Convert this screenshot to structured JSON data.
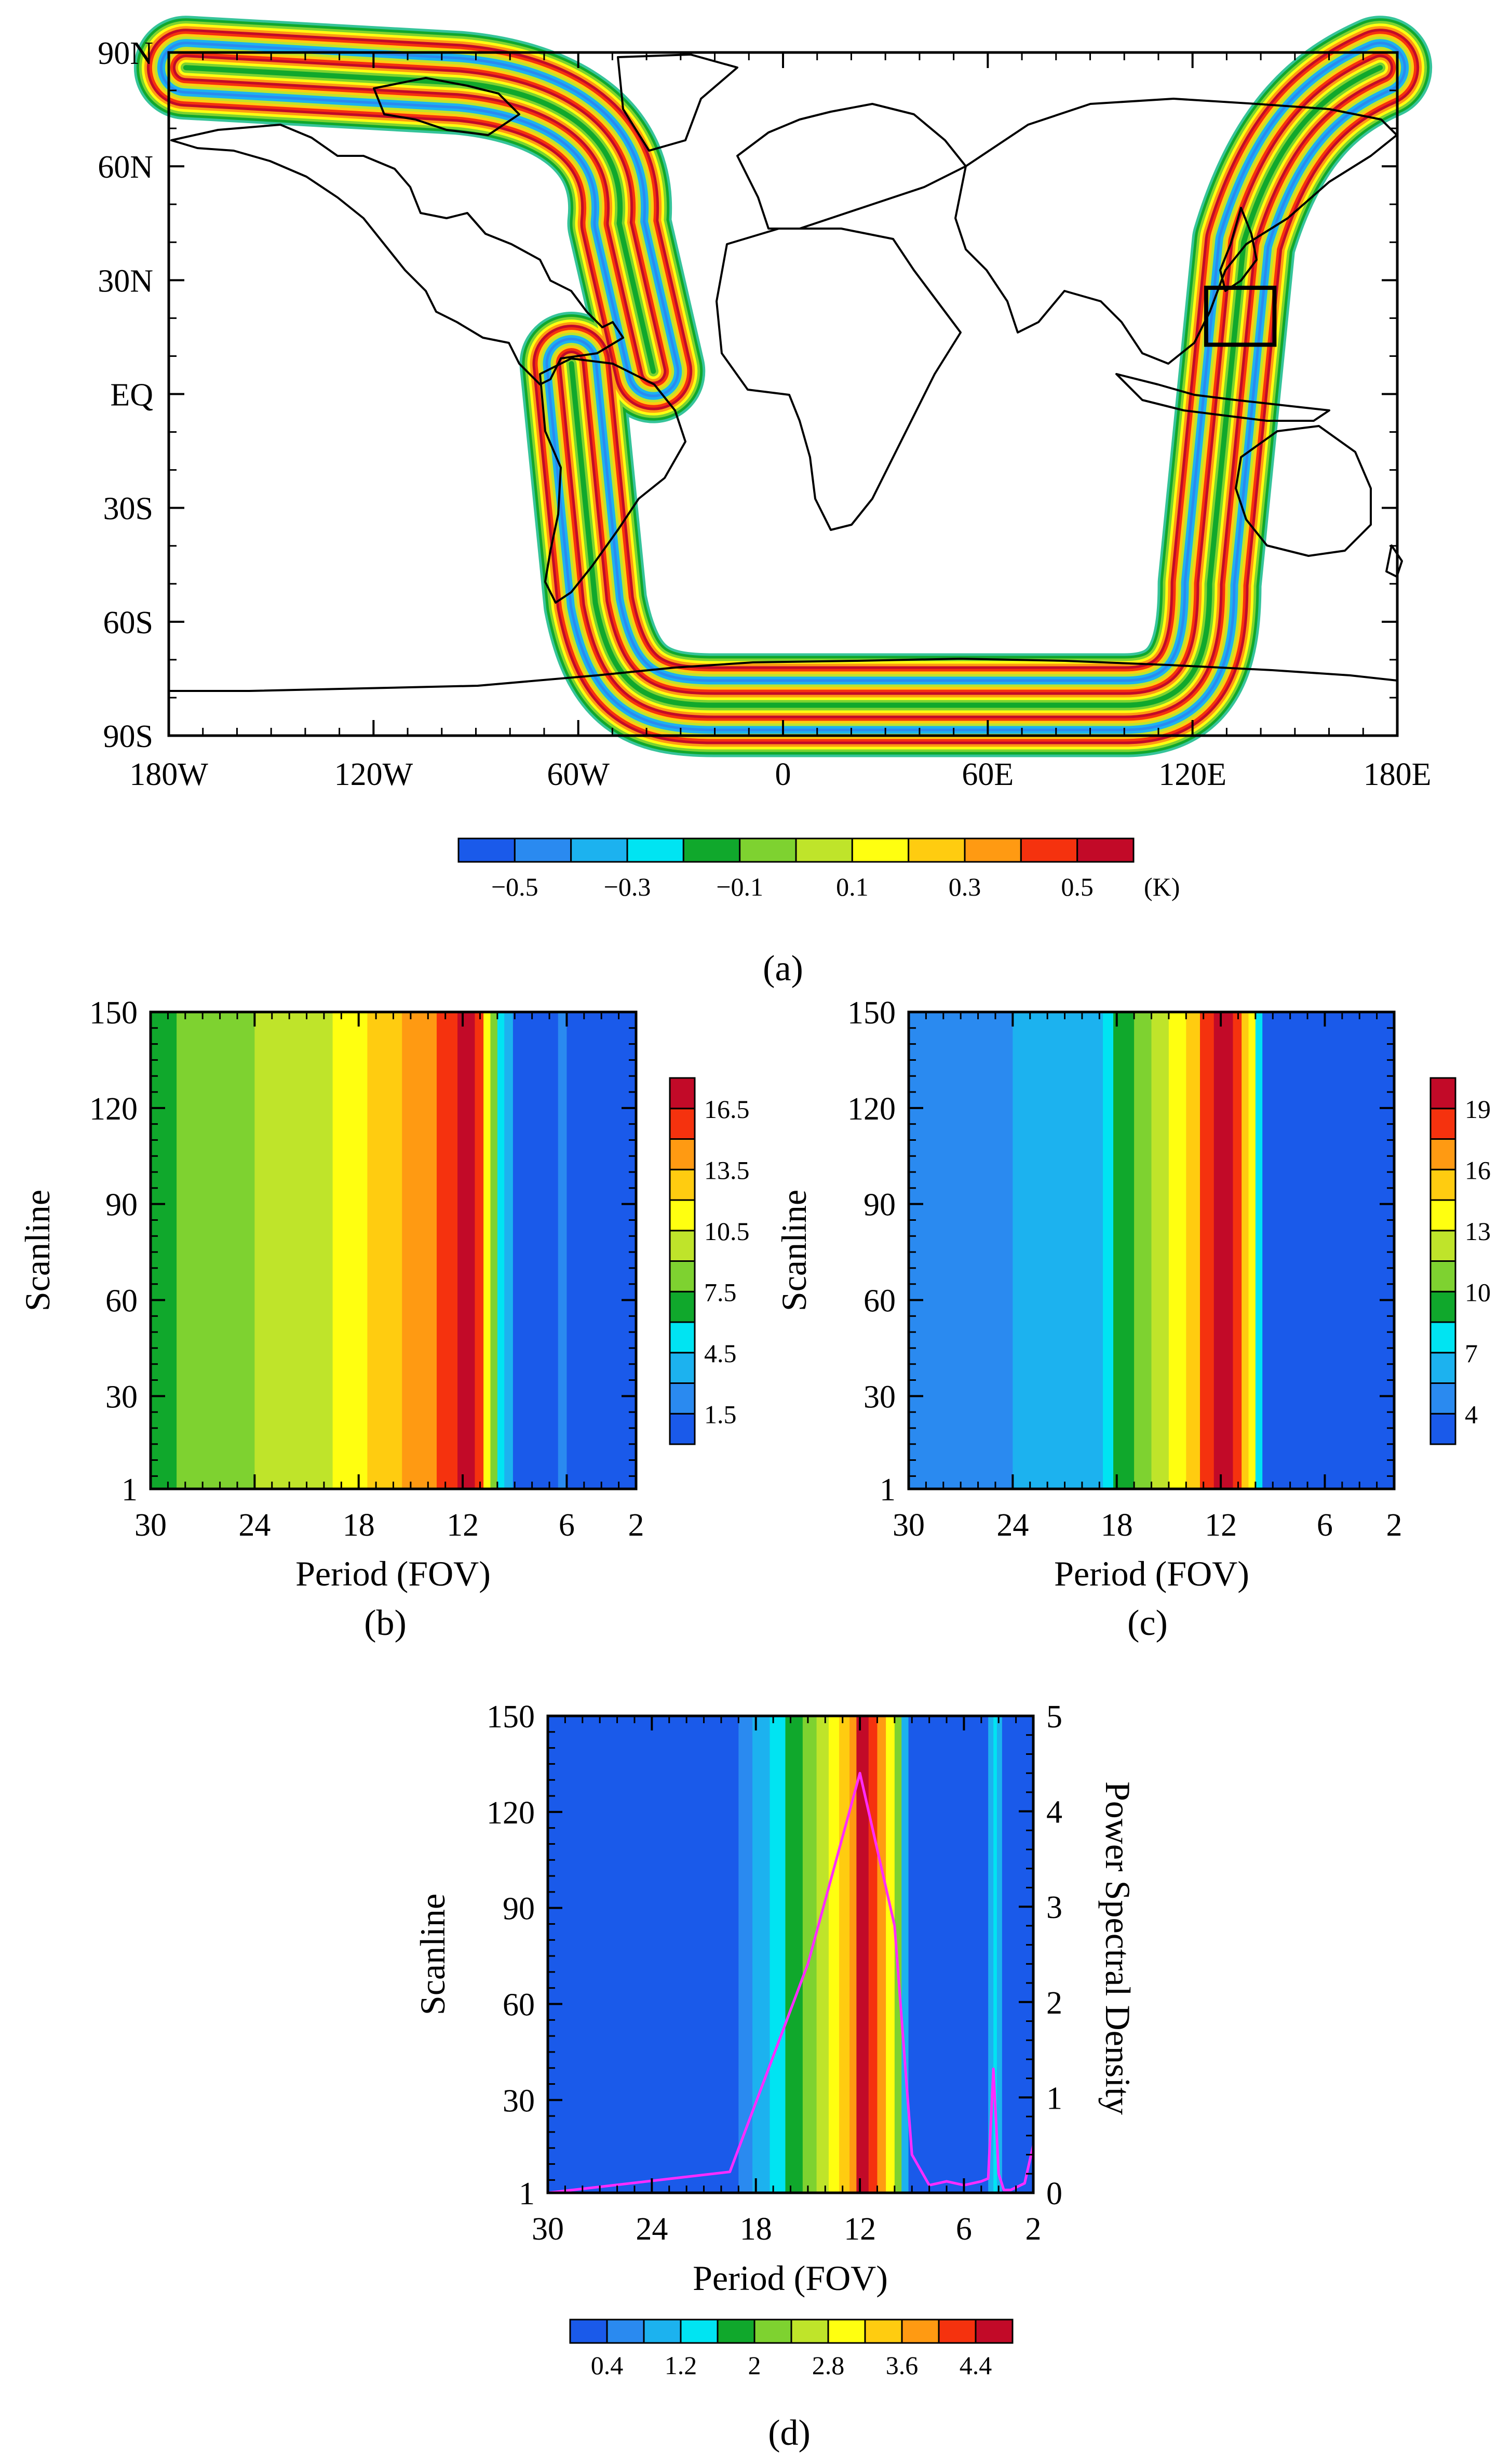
{
  "figure": {
    "colors": {
      "palette_12": [
        "#1a5aea",
        "#2a8af0",
        "#1cb2ef",
        "#00e4f2",
        "#10a82c",
        "#7ed230",
        "#bfe42a",
        "#ffff10",
        "#ffcc10",
        "#ff9a12",
        "#f5320e",
        "#c20a28"
      ],
      "continent_outline": "#000000",
      "swath_edge": "#36c49a",
      "psd_line": "#ff2cff",
      "box": "#000000"
    }
  },
  "chart_data": [
    {
      "id": "a",
      "type": "heatmap",
      "subtype": "map",
      "panel_label": "(a)",
      "title": "",
      "x_ticks": [
        "180W",
        "120W",
        "60W",
        "0",
        "60E",
        "120E",
        "180E"
      ],
      "y_ticks": [
        "90N",
        "60N",
        "30N",
        "EQ",
        "30S",
        "60S",
        "90S"
      ],
      "xlim": [
        -180,
        180
      ],
      "ylim": [
        -90,
        90
      ],
      "colorbar": {
        "orientation": "horizontal",
        "labels": [
          "−0.5",
          "−0.3",
          "−0.1",
          "0.1",
          "0.3",
          "0.5"
        ],
        "unit": "(K)",
        "levels": [
          -0.6,
          -0.5,
          -0.4,
          -0.3,
          -0.2,
          -0.1,
          0.0,
          0.1,
          0.2,
          0.3,
          0.4,
          0.5,
          0.6
        ]
      },
      "swath": {
        "description": "striping noise along orbit, values alternate between -0.6 and 0.6 K across the scan",
        "ascending_start": [
          -175,
          86
        ],
        "ascending_turn_lon": -45,
        "ascending_end": [
          -38,
          6
        ],
        "descending_start": [
          -62,
          8
        ],
        "southern_bottom_lat": -82,
        "descending_east_lon": 125,
        "eastern_top": [
          175,
          86
        ]
      },
      "box": {
        "lon_range": [
          124,
          144
        ],
        "lat_range": [
          13,
          28
        ]
      }
    },
    {
      "id": "b",
      "type": "heatmap",
      "panel_label": "(b)",
      "xlabel": "Period (FOV)",
      "ylabel": "Scanline",
      "x_ticks": [
        "30",
        "24",
        "18",
        "12",
        "6",
        "2"
      ],
      "y_ticks": [
        "1",
        "30",
        "60",
        "90",
        "120",
        "150"
      ],
      "xlim": [
        30,
        2
      ],
      "ylim": [
        1,
        150
      ],
      "colorbar": {
        "orientation": "vertical",
        "labels": [
          "1.5",
          "4.5",
          "7.5",
          "10.5",
          "13.5",
          "16.5"
        ]
      },
      "columns": [
        {
          "period_start": 30,
          "period_end": 28.5,
          "color_index": 4
        },
        {
          "period_start": 28.5,
          "period_end": 24,
          "color_index": 5
        },
        {
          "period_start": 24,
          "period_end": 19.5,
          "color_index": 6
        },
        {
          "period_start": 19.5,
          "period_end": 17.5,
          "color_index": 7
        },
        {
          "period_start": 17.5,
          "period_end": 15.5,
          "color_index": 8
        },
        {
          "period_start": 15.5,
          "period_end": 13.5,
          "color_index": 9
        },
        {
          "period_start": 13.5,
          "period_end": 12.3,
          "color_index": 10
        },
        {
          "period_start": 12.3,
          "period_end": 11.3,
          "color_index": 11
        },
        {
          "period_start": 11.3,
          "period_end": 10.8,
          "color_index": 10
        },
        {
          "period_start": 10.8,
          "period_end": 10.4,
          "color_index": 7
        },
        {
          "period_start": 10.4,
          "period_end": 10.0,
          "color_index": 5
        },
        {
          "period_start": 10.0,
          "period_end": 9.6,
          "color_index": 3
        },
        {
          "period_start": 9.6,
          "period_end": 9.1,
          "color_index": 2
        },
        {
          "period_start": 9.1,
          "period_end": 6.5,
          "color_index": 0
        },
        {
          "period_start": 6.5,
          "period_end": 6.0,
          "color_index": 1
        },
        {
          "period_start": 6.0,
          "period_end": 2,
          "color_index": 0
        }
      ]
    },
    {
      "id": "c",
      "type": "heatmap",
      "panel_label": "(c)",
      "xlabel": "Period (FOV)",
      "ylabel": "Scanline",
      "x_ticks": [
        "30",
        "24",
        "18",
        "12",
        "6",
        "2"
      ],
      "y_ticks": [
        "1",
        "30",
        "60",
        "90",
        "120",
        "150"
      ],
      "xlim": [
        30,
        2
      ],
      "ylim": [
        1,
        150
      ],
      "colorbar": {
        "orientation": "vertical",
        "labels": [
          "4",
          "7",
          "10",
          "13",
          "16",
          "19"
        ]
      },
      "columns": [
        {
          "period_start": 30,
          "period_end": 24,
          "color_index": 1
        },
        {
          "period_start": 24,
          "period_end": 18.8,
          "color_index": 2
        },
        {
          "period_start": 18.8,
          "period_end": 18.2,
          "color_index": 3
        },
        {
          "period_start": 18.2,
          "period_end": 17.0,
          "color_index": 4
        },
        {
          "period_start": 17.0,
          "period_end": 16.0,
          "color_index": 5
        },
        {
          "period_start": 16.0,
          "period_end": 15.0,
          "color_index": 6
        },
        {
          "period_start": 15.0,
          "period_end": 14.0,
          "color_index": 7
        },
        {
          "period_start": 14.0,
          "period_end": 13.2,
          "color_index": 8
        },
        {
          "period_start": 13.2,
          "period_end": 12.4,
          "color_index": 10
        },
        {
          "period_start": 12.4,
          "period_end": 11.3,
          "color_index": 11
        },
        {
          "period_start": 11.3,
          "period_end": 10.8,
          "color_index": 10
        },
        {
          "period_start": 10.8,
          "period_end": 10.4,
          "color_index": 8
        },
        {
          "period_start": 10.4,
          "period_end": 10.0,
          "color_index": 7
        },
        {
          "period_start": 10.0,
          "period_end": 9.6,
          "color_index": 3
        },
        {
          "period_start": 9.6,
          "period_end": 2,
          "color_index": 0
        }
      ]
    },
    {
      "id": "d",
      "type": "heatmap",
      "panel_label": "(d)",
      "xlabel": "Period (FOV)",
      "ylabel": "Scanline",
      "y2label": "Power Spectral Density",
      "x_ticks": [
        "30",
        "24",
        "18",
        "12",
        "6",
        "2"
      ],
      "y_ticks": [
        "1",
        "30",
        "60",
        "90",
        "120",
        "150"
      ],
      "y2_ticks": [
        "0",
        "1",
        "2",
        "3",
        "4",
        "5"
      ],
      "xlim": [
        30,
        2
      ],
      "ylim": [
        1,
        150
      ],
      "y2lim": [
        0,
        5
      ],
      "colorbar": {
        "orientation": "horizontal",
        "labels": [
          "0.4",
          "1.2",
          "2",
          "2.8",
          "3.6",
          "4.4"
        ]
      },
      "columns": [
        {
          "period_start": 30,
          "period_end": 19.0,
          "color_index": 0
        },
        {
          "period_start": 19.0,
          "period_end": 18.2,
          "color_index": 1
        },
        {
          "period_start": 18.2,
          "period_end": 17.2,
          "color_index": 2
        },
        {
          "period_start": 17.2,
          "period_end": 16.3,
          "color_index": 3
        },
        {
          "period_start": 16.3,
          "period_end": 15.3,
          "color_index": 4
        },
        {
          "period_start": 15.3,
          "period_end": 14.5,
          "color_index": 5
        },
        {
          "period_start": 14.5,
          "period_end": 13.8,
          "color_index": 6
        },
        {
          "period_start": 13.8,
          "period_end": 13.2,
          "color_index": 7
        },
        {
          "period_start": 13.2,
          "period_end": 12.6,
          "color_index": 8
        },
        {
          "period_start": 12.6,
          "period_end": 12.2,
          "color_index": 9
        },
        {
          "period_start": 12.2,
          "period_end": 11.5,
          "color_index": 11
        },
        {
          "period_start": 11.5,
          "period_end": 11.0,
          "color_index": 10
        },
        {
          "period_start": 11.0,
          "period_end": 10.5,
          "color_index": 9
        },
        {
          "period_start": 10.5,
          "period_end": 10.0,
          "color_index": 7
        },
        {
          "period_start": 10.0,
          "period_end": 9.6,
          "color_index": 5
        },
        {
          "period_start": 9.6,
          "period_end": 9.2,
          "color_index": 2
        },
        {
          "period_start": 9.2,
          "period_end": 4.6,
          "color_index": 0
        },
        {
          "period_start": 4.6,
          "period_end": 4.3,
          "color_index": 2
        },
        {
          "period_start": 4.3,
          "period_end": 4.1,
          "color_index": 3
        },
        {
          "period_start": 4.1,
          "period_end": 3.8,
          "color_index": 2
        },
        {
          "period_start": 3.8,
          "period_end": 2,
          "color_index": 0
        }
      ],
      "psd_series": {
        "name": "Power Spectral Density",
        "x": [
          30,
          19.5,
          15,
          12,
          10,
          9,
          8,
          7,
          6,
          5,
          4.6,
          4.3,
          4.0,
          3.7,
          3.3,
          2.5,
          2
        ],
        "y": [
          0.0,
          0.22,
          2.4,
          4.4,
          2.8,
          0.4,
          0.08,
          0.12,
          0.08,
          0.12,
          0.15,
          1.3,
          0.2,
          0.03,
          0.03,
          0.1,
          0.5
        ]
      }
    }
  ]
}
